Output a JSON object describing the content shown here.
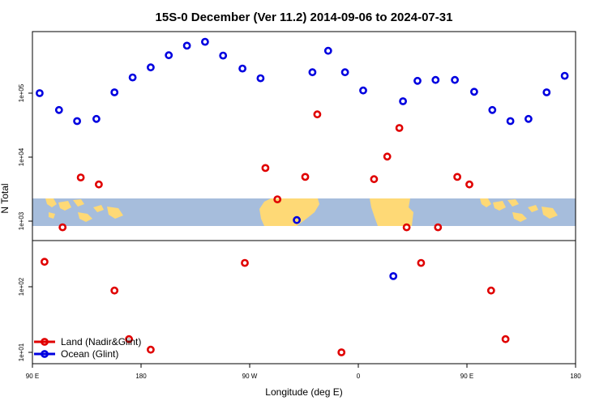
{
  "chart_data": {
    "type": "scatter",
    "title": "15S-0 December (Ver 11.2)   2014-09-06 to 2024-07-31",
    "xlabel": "Longitude (deg E)",
    "ylabel": "N Total",
    "x_ticks": [
      "90 E",
      "180",
      "90 W",
      "0",
      "90 E",
      "180"
    ],
    "y_ticks": [
      "1e+01",
      "1e+02",
      "1e+03",
      "1e+04",
      "1e+05"
    ],
    "y_scale": "log",
    "legend_position": "bottom-left",
    "map_band": "world map strip (land in yellow, ocean in blue) drawn across the plot near N = 1e+03",
    "series": [
      {
        "name": "Land (Nadir&Glint)",
        "color": "#e00000",
        "points": [
          {
            "x": 100,
            "y": 250
          },
          {
            "x": 115,
            "y": 850
          },
          {
            "x": 130,
            "y": 5000
          },
          {
            "x": 145,
            "y": 3900
          },
          {
            "x": 158,
            "y": 90
          },
          {
            "x": 170,
            "y": 16
          },
          {
            "x": 188,
            "y": 11
          },
          {
            "x": 266,
            "y": 240
          },
          {
            "x": 283,
            "y": 7000
          },
          {
            "x": 293,
            "y": 2300
          },
          {
            "x": 316,
            "y": 5100
          },
          {
            "x": 326,
            "y": 47000
          },
          {
            "x": 346,
            "y": 10
          },
          {
            "x": 373,
            "y": 4700
          },
          {
            "x": 384,
            "y": 10500
          },
          {
            "x": 394,
            "y": 29000
          },
          {
            "x": 400,
            "y": 850
          },
          {
            "x": 412,
            "y": 240
          },
          {
            "x": 426,
            "y": 850
          },
          {
            "x": 442,
            "y": 5100
          },
          {
            "x": 452,
            "y": 3900
          },
          {
            "x": 470,
            "y": 90
          },
          {
            "x": 482,
            "y": 16
          }
        ]
      },
      {
        "name": "Ocean (Glint)",
        "color": "#0000e0",
        "points": [
          {
            "x": 96,
            "y": 100000
          },
          {
            "x": 112,
            "y": 55000
          },
          {
            "x": 127,
            "y": 37000
          },
          {
            "x": 143,
            "y": 40000
          },
          {
            "x": 158,
            "y": 103000
          },
          {
            "x": 173,
            "y": 175000
          },
          {
            "x": 188,
            "y": 250000
          },
          {
            "x": 203,
            "y": 385000
          },
          {
            "x": 218,
            "y": 540000
          },
          {
            "x": 233,
            "y": 620000
          },
          {
            "x": 248,
            "y": 380000
          },
          {
            "x": 264,
            "y": 240000
          },
          {
            "x": 279,
            "y": 170000
          },
          {
            "x": 309,
            "y": 1100
          },
          {
            "x": 322,
            "y": 210000
          },
          {
            "x": 335,
            "y": 450000
          },
          {
            "x": 349,
            "y": 210000
          },
          {
            "x": 364,
            "y": 110000
          },
          {
            "x": 389,
            "y": 150
          },
          {
            "x": 397,
            "y": 75000
          },
          {
            "x": 409,
            "y": 155000
          },
          {
            "x": 424,
            "y": 160000
          },
          {
            "x": 440,
            "y": 160000
          },
          {
            "x": 456,
            "y": 105000
          },
          {
            "x": 471,
            "y": 55000
          },
          {
            "x": 486,
            "y": 37000
          },
          {
            "x": 501,
            "y": 40000
          },
          {
            "x": 516,
            "y": 103000
          },
          {
            "x": 531,
            "y": 185000
          }
        ]
      }
    ]
  }
}
